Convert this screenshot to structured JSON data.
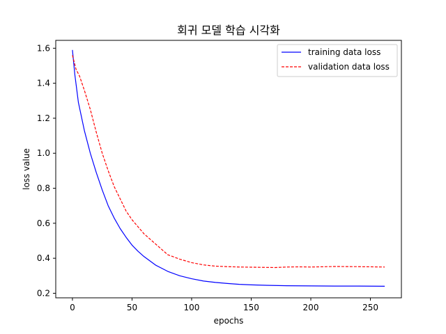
{
  "chart_data": {
    "type": "line",
    "title": "회귀 모델 학습 시각화",
    "xlabel": "epochs",
    "ylabel": "loss value",
    "xlim": [
      -14,
      276
    ],
    "ylim": [
      0.174,
      1.645
    ],
    "xticks": [
      0,
      50,
      100,
      150,
      200,
      250
    ],
    "yticks": [
      0.2,
      0.4,
      0.6,
      0.8,
      1.0,
      1.2,
      1.4,
      1.6
    ],
    "ytick_labels": [
      "0.2",
      "0.4",
      "0.6",
      "0.8",
      "1.0",
      "1.2",
      "1.4",
      "1.6"
    ],
    "grid": false,
    "legend_position": "top-right",
    "series": [
      {
        "name": "training data loss",
        "color": "#0000ff",
        "style": "solid",
        "x": [
          0,
          2,
          5,
          10,
          15,
          20,
          25,
          30,
          35,
          40,
          45,
          50,
          55,
          60,
          70,
          80,
          90,
          100,
          110,
          120,
          130,
          140,
          150,
          160,
          180,
          200,
          220,
          240,
          262
        ],
        "y": [
          1.59,
          1.45,
          1.29,
          1.13,
          1.0,
          0.89,
          0.79,
          0.7,
          0.63,
          0.57,
          0.52,
          0.475,
          0.44,
          0.41,
          0.36,
          0.325,
          0.3,
          0.283,
          0.27,
          0.262,
          0.256,
          0.251,
          0.248,
          0.246,
          0.243,
          0.242,
          0.241,
          0.241,
          0.24
        ]
      },
      {
        "name": "validation data loss",
        "color": "#ff0000",
        "style": "dashed",
        "x": [
          0,
          3,
          6,
          10,
          15,
          20,
          25,
          30,
          35,
          40,
          45,
          50,
          55,
          60,
          70,
          80,
          90,
          100,
          110,
          120,
          130,
          140,
          150,
          160,
          170,
          180,
          190,
          200,
          220,
          240,
          262
        ],
        "y": [
          1.56,
          1.48,
          1.44,
          1.36,
          1.25,
          1.12,
          1.0,
          0.9,
          0.81,
          0.74,
          0.67,
          0.62,
          0.58,
          0.54,
          0.48,
          0.42,
          0.395,
          0.375,
          0.362,
          0.355,
          0.352,
          0.35,
          0.349,
          0.348,
          0.347,
          0.35,
          0.351,
          0.35,
          0.353,
          0.352,
          0.35
        ]
      }
    ]
  }
}
